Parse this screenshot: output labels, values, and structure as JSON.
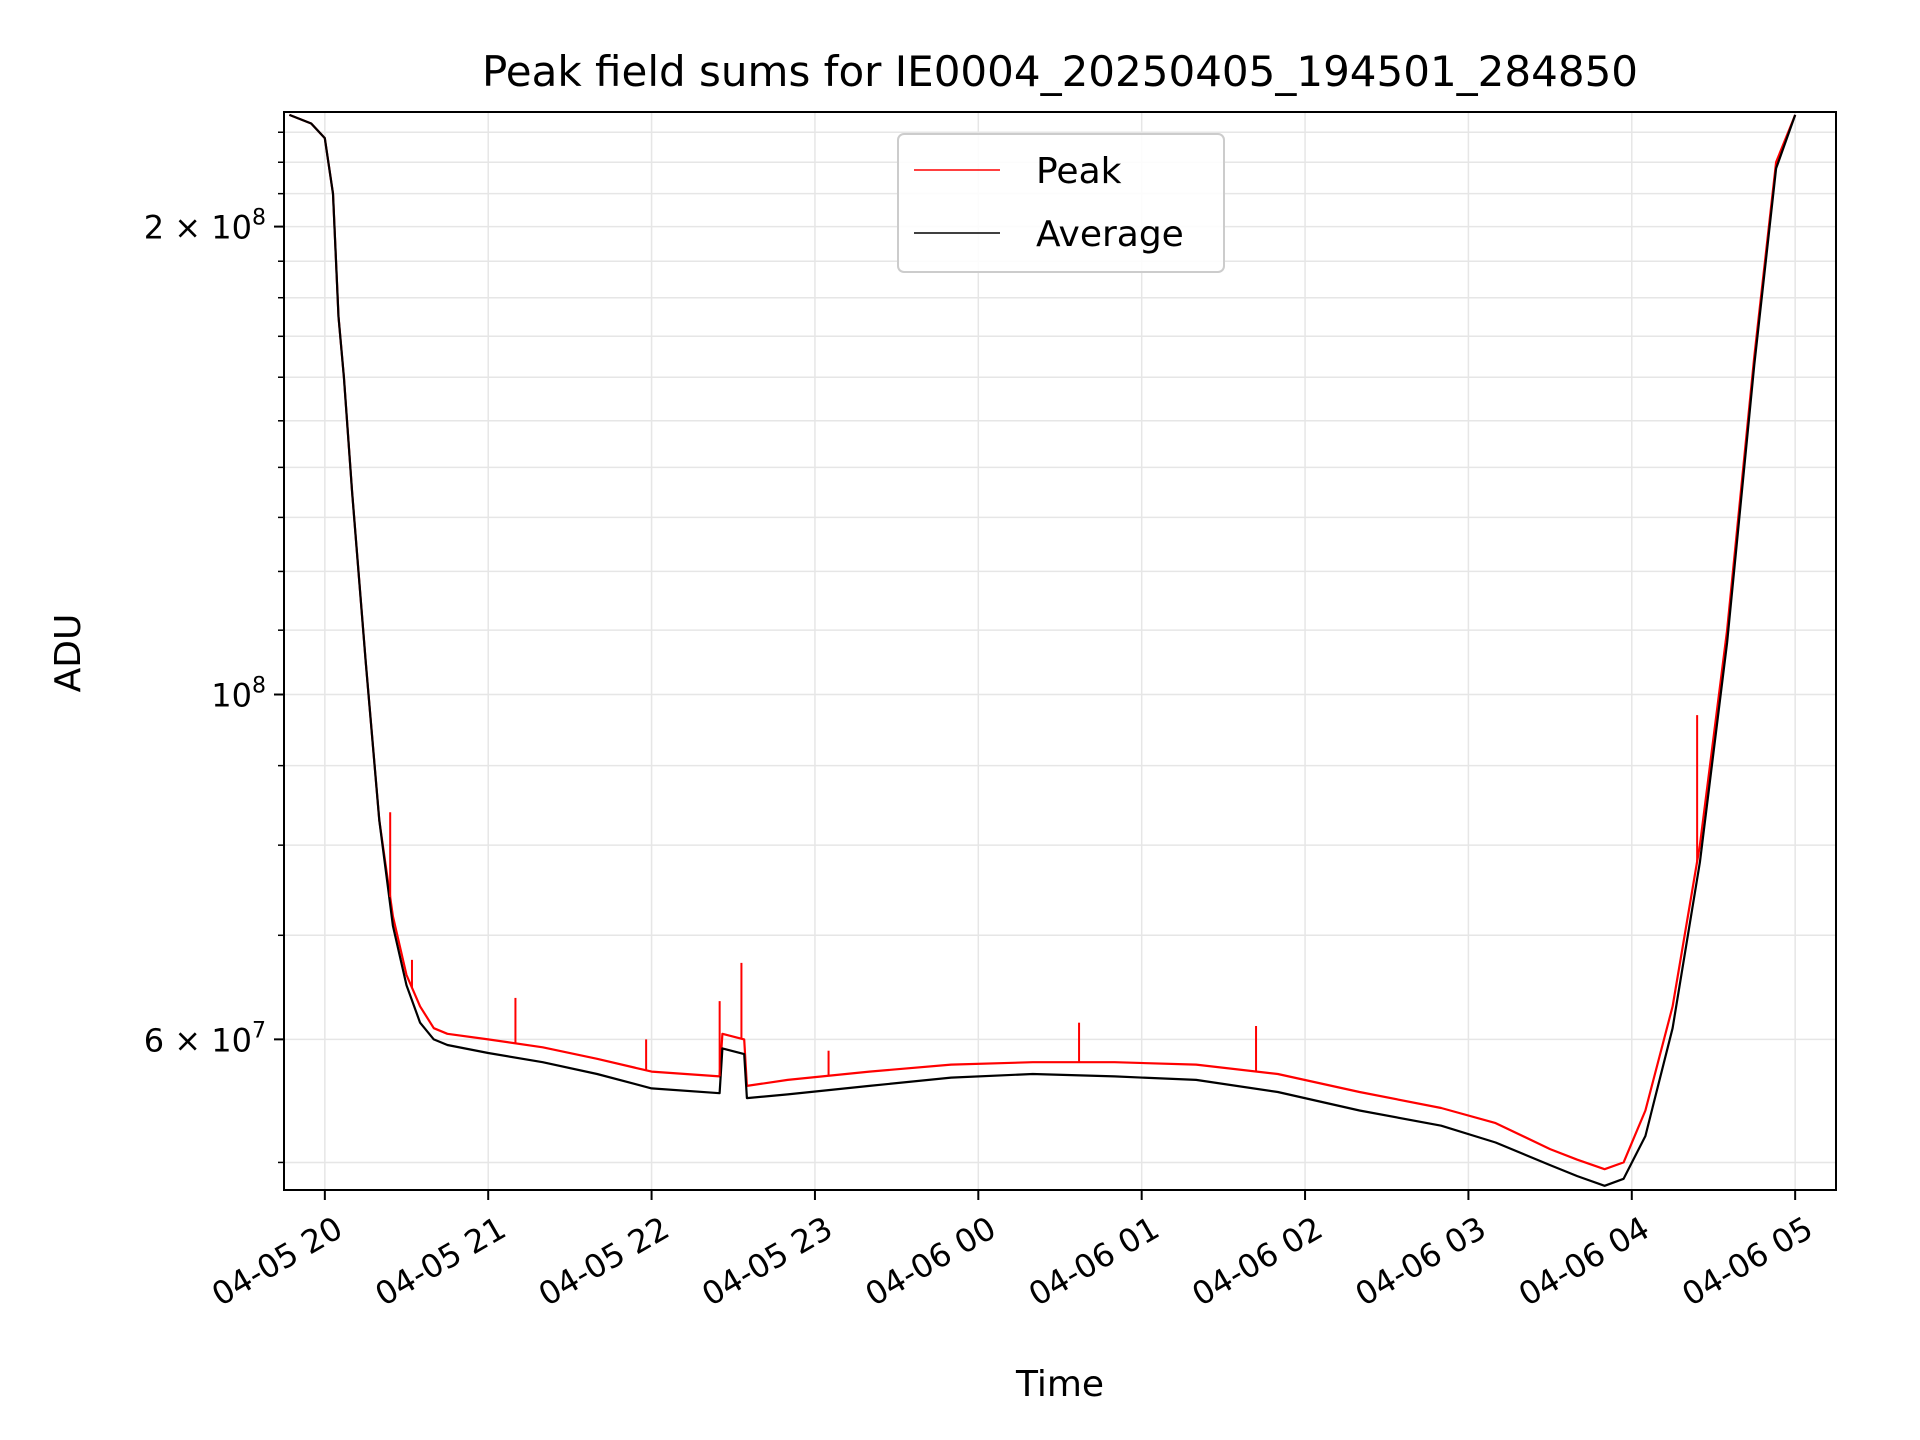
{
  "chart_data": {
    "type": "line",
    "title": "Peak field sums for IE0004_20250405_194501_284850",
    "xlabel": "Time",
    "ylabel": "ADU",
    "y_scale": "log",
    "ylim": [
      48000000,
      237000000
    ],
    "xlim": [
      "2025-04-05 19:45",
      "2025-04-06 05:15"
    ],
    "x_ticks": [
      "04-05 20",
      "04-05 21",
      "04-05 22",
      "04-05 23",
      "04-06 00",
      "04-06 01",
      "04-06 02",
      "04-06 03",
      "04-06 04",
      "04-06 05"
    ],
    "y_ticks": [
      {
        "value": 200000000,
        "mantissa": "2",
        "exponent": "8"
      },
      {
        "value": 100000000,
        "mantissa": "",
        "exponent": "8"
      },
      {
        "value": 60000000,
        "mantissa": "6",
        "exponent": "7"
      }
    ],
    "grid": true,
    "legend_position": "upper-center",
    "series": [
      {
        "name": "Peak",
        "color": "#ff0000",
        "x": [
          "2025-04-05 19:47",
          "2025-04-05 19:55",
          "2025-04-05 20:00",
          "2025-04-05 20:03",
          "2025-04-05 20:05",
          "2025-04-05 20:07",
          "2025-04-05 20:10",
          "2025-04-05 20:15",
          "2025-04-05 20:20",
          "2025-04-05 20:25",
          "2025-04-05 20:30",
          "2025-04-05 20:35",
          "2025-04-05 20:40",
          "2025-04-05 20:45",
          "2025-04-05 21:00",
          "2025-04-05 21:20",
          "2025-04-05 21:40",
          "2025-04-05 22:00",
          "2025-04-05 22:25",
          "2025-04-05 22:26",
          "2025-04-05 22:34",
          "2025-04-05 22:35",
          "2025-04-05 22:50",
          "2025-04-05 23:20",
          "2025-04-05 23:50",
          "2025-04-06 00:20",
          "2025-04-06 00:50",
          "2025-04-06 01:20",
          "2025-04-06 01:50",
          "2025-04-06 02:20",
          "2025-04-06 02:50",
          "2025-04-06 03:10",
          "2025-04-06 03:30",
          "2025-04-06 03:40",
          "2025-04-06 03:50",
          "2025-04-06 03:57",
          "2025-04-06 04:05",
          "2025-04-06 04:15",
          "2025-04-06 04:25",
          "2025-04-06 04:35",
          "2025-04-06 04:45",
          "2025-04-06 04:53",
          "2025-04-06 05:00"
        ],
        "y": [
          236000000,
          233000000,
          228000000,
          210000000,
          175000000,
          160000000,
          135000000,
          105000000,
          83000000,
          72000000,
          66000000,
          63000000,
          61000000,
          60500000,
          60000000,
          59300000,
          58300000,
          57200000,
          56800000,
          60500000,
          60000000,
          56000000,
          56500000,
          57200000,
          57800000,
          58000000,
          58000000,
          57800000,
          57000000,
          55500000,
          54200000,
          53000000,
          51000000,
          50200000,
          49500000,
          50000000,
          54000000,
          63000000,
          80000000,
          110000000,
          165000000,
          220000000,
          236000000
        ]
      },
      {
        "name": "Average",
        "color": "#000000",
        "x": [
          "2025-04-05 19:47",
          "2025-04-05 19:55",
          "2025-04-05 20:00",
          "2025-04-05 20:03",
          "2025-04-05 20:05",
          "2025-04-05 20:07",
          "2025-04-05 20:10",
          "2025-04-05 20:15",
          "2025-04-05 20:20",
          "2025-04-05 20:25",
          "2025-04-05 20:30",
          "2025-04-05 20:35",
          "2025-04-05 20:40",
          "2025-04-05 20:45",
          "2025-04-05 21:00",
          "2025-04-05 21:20",
          "2025-04-05 21:40",
          "2025-04-05 22:00",
          "2025-04-05 22:25",
          "2025-04-05 22:26",
          "2025-04-05 22:34",
          "2025-04-05 22:35",
          "2025-04-05 22:50",
          "2025-04-05 23:20",
          "2025-04-05 23:50",
          "2025-04-06 00:20",
          "2025-04-06 00:50",
          "2025-04-06 01:20",
          "2025-04-06 01:50",
          "2025-04-06 02:20",
          "2025-04-06 02:50",
          "2025-04-06 03:10",
          "2025-04-06 03:30",
          "2025-04-06 03:40",
          "2025-04-06 03:50",
          "2025-04-06 03:57",
          "2025-04-06 04:05",
          "2025-04-06 04:15",
          "2025-04-06 04:25",
          "2025-04-06 04:35",
          "2025-04-06 04:45",
          "2025-04-06 04:53",
          "2025-04-06 05:00"
        ],
        "y": [
          236000000,
          233000000,
          228000000,
          210000000,
          175000000,
          160000000,
          135000000,
          105000000,
          83000000,
          71000000,
          65000000,
          61500000,
          60000000,
          59500000,
          58800000,
          58000000,
          57000000,
          55800000,
          55400000,
          59200000,
          58700000,
          55000000,
          55300000,
          56000000,
          56700000,
          57000000,
          56800000,
          56500000,
          55500000,
          54000000,
          52800000,
          51500000,
          49800000,
          49000000,
          48300000,
          48800000,
          52000000,
          61000000,
          78000000,
          108000000,
          163000000,
          218000000,
          236000000
        ]
      }
    ],
    "spikes": [
      {
        "x": "2025-04-05 20:24",
        "y": 84000000
      },
      {
        "x": "2025-04-05 20:32",
        "y": 67500000
      },
      {
        "x": "2025-04-05 21:10",
        "y": 63800000
      },
      {
        "x": "2025-04-05 21:58",
        "y": 60000000
      },
      {
        "x": "2025-04-05 22:25",
        "y": 63500000
      },
      {
        "x": "2025-04-05 22:33",
        "y": 67200000
      },
      {
        "x": "2025-04-05 23:05",
        "y": 59000000
      },
      {
        "x": "2025-04-06 00:37",
        "y": 61500000
      },
      {
        "x": "2025-04-06 01:42",
        "y": 61200000
      },
      {
        "x": "2025-04-06 04:24",
        "y": 97000000
      }
    ]
  }
}
